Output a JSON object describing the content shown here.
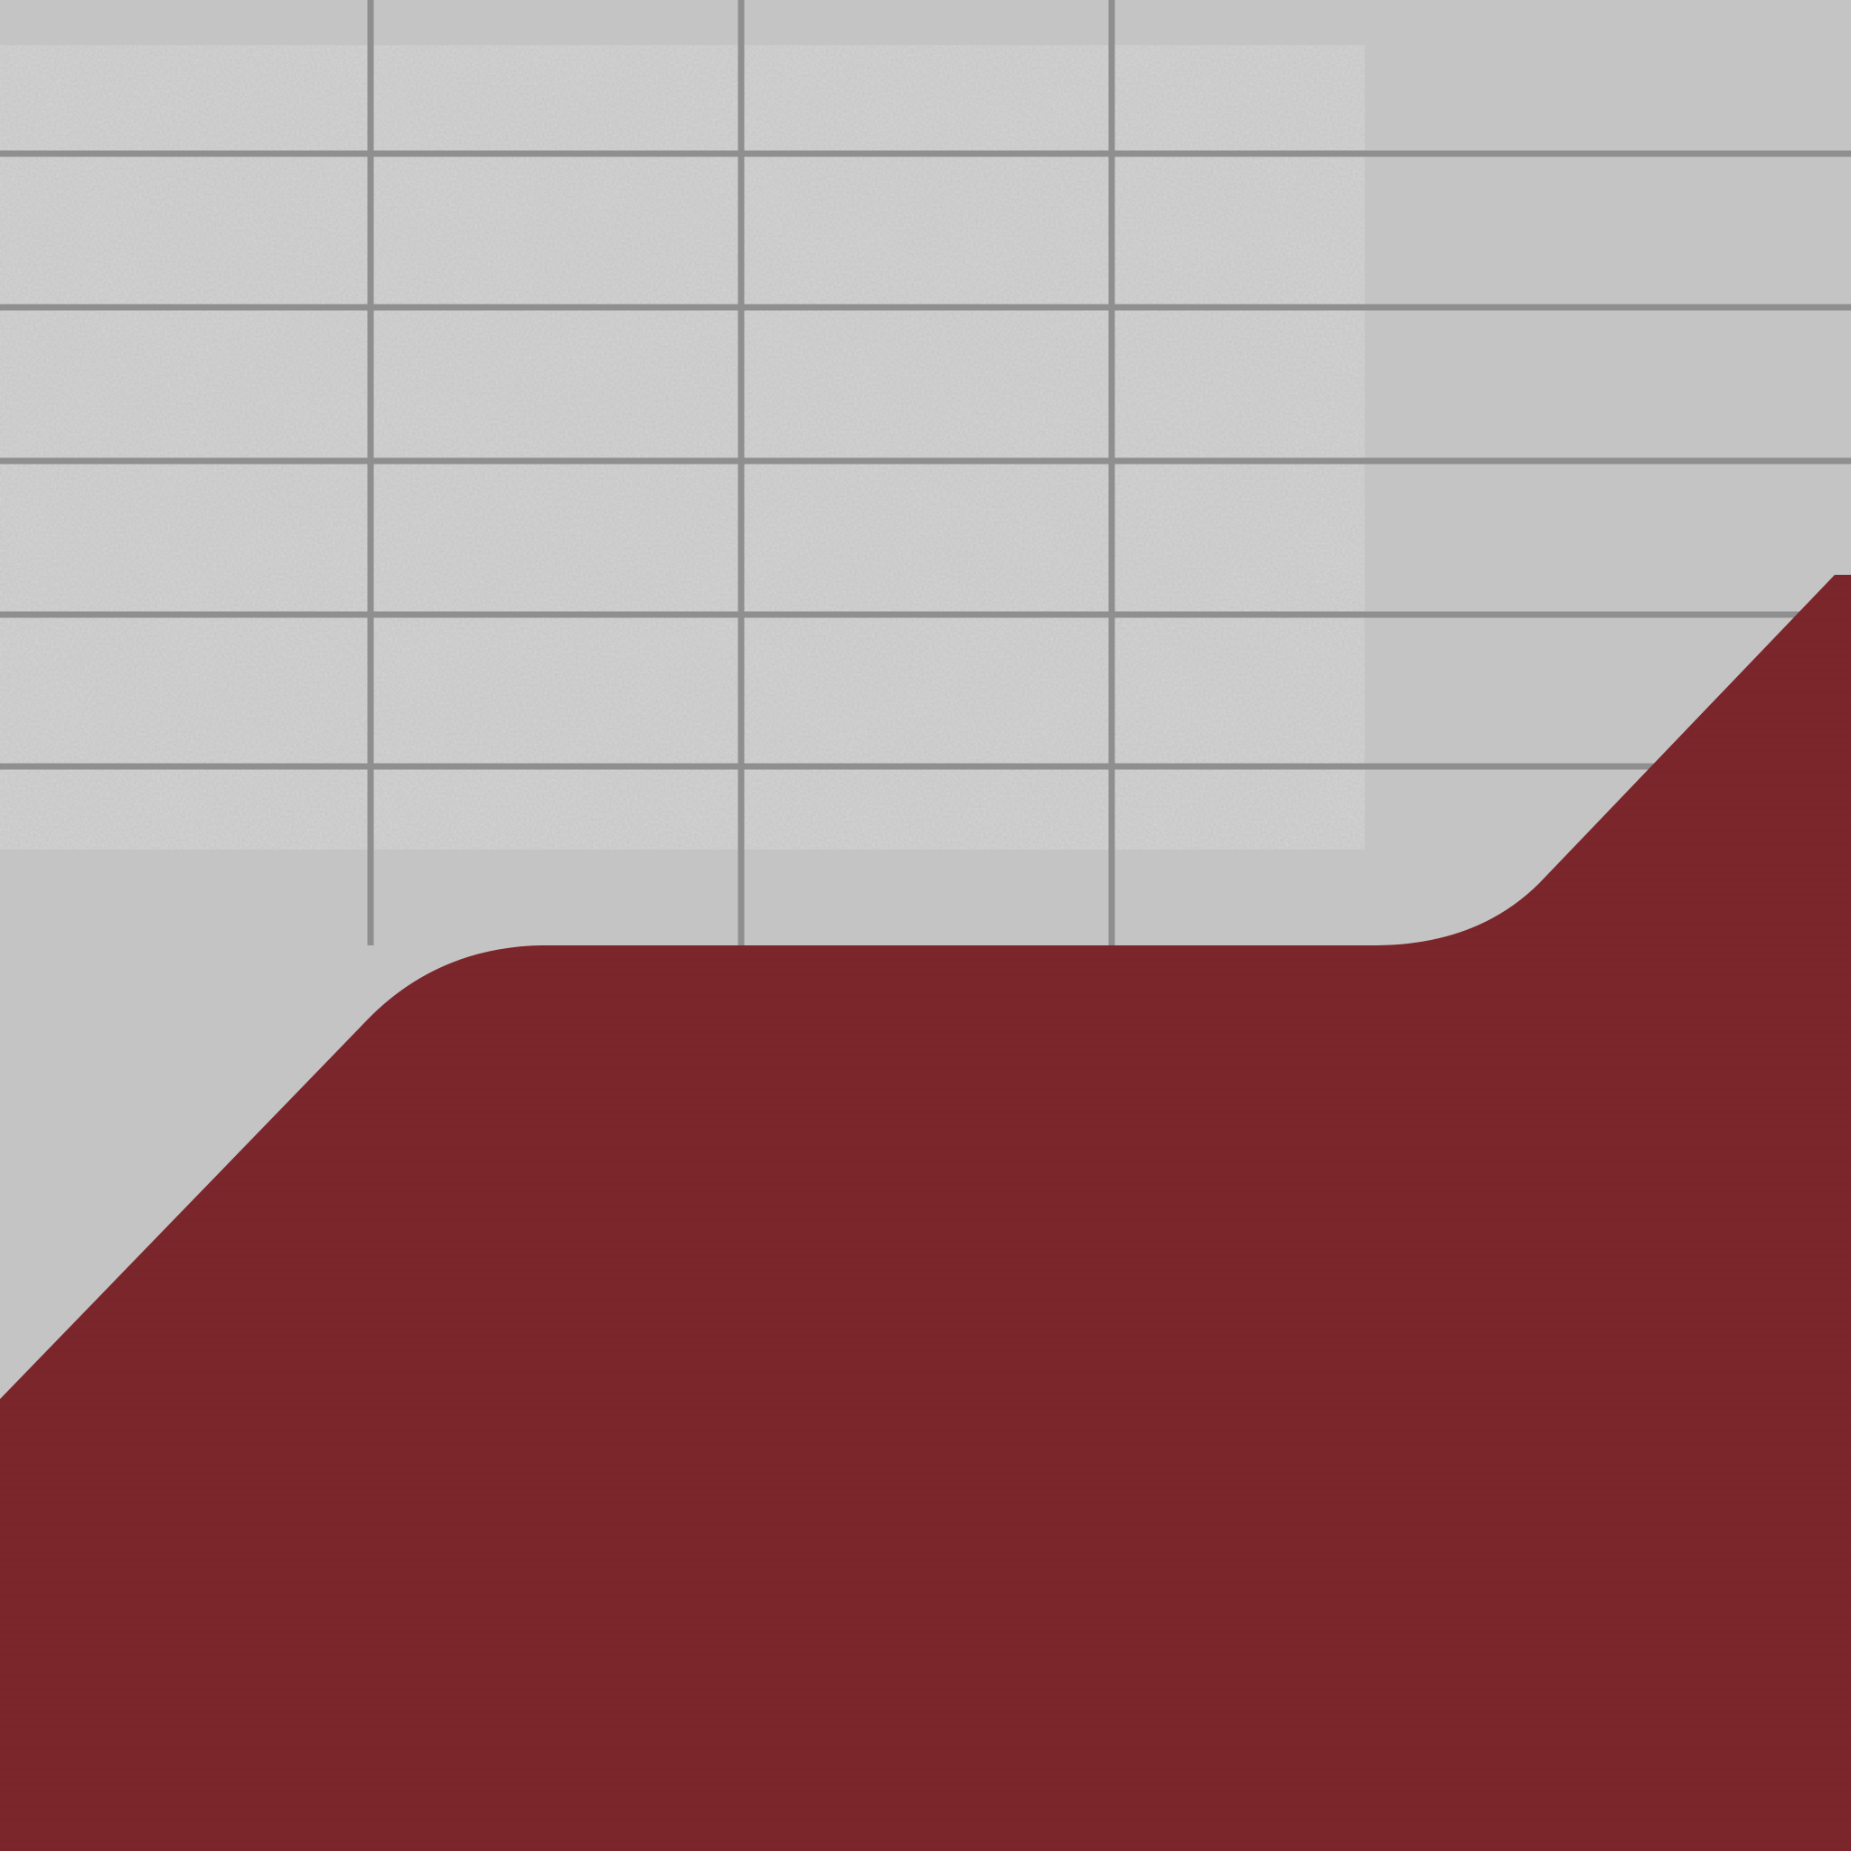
{
  "texture": {
    "kind": "stylized tile-and-floor texture",
    "tile_wall": {
      "tile_color": "#c9c9c9",
      "tile_color_light": "#d3d3d3",
      "grout_color": "#8f8f8f",
      "stain_color": "#a9a9a9",
      "columns": 4,
      "rows": 6
    },
    "floor": {
      "color": "#7b262b",
      "stripe_color": "#74232a",
      "shape": "diagonal band with rounded shoulders"
    },
    "background_color": "#c4c4c4"
  }
}
